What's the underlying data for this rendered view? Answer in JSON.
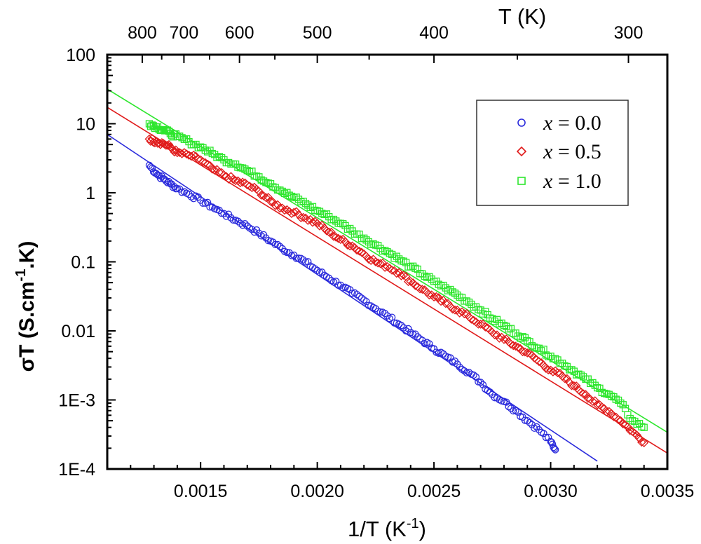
{
  "chart_data": {
    "type": "scatter",
    "title": "",
    "xlabel": "1/T (K",
    "xlabel_sup": "-1",
    "xlabel_close": ")",
    "ylabel": "σT (S.cm",
    "ylabel_sup": "-1",
    "ylabel_tail": ".K)",
    "top_axis_label": "T (K)",
    "xlim": [
      0.0011,
      0.0035
    ],
    "ylim": [
      0.0001,
      100
    ],
    "yscale": "log",
    "grid": false,
    "legend_position": "top-right",
    "x_ticks": [
      0.0015,
      0.002,
      0.0025,
      0.003,
      0.0035
    ],
    "x_tick_labels": [
      "0.0015",
      "0.0020",
      "0.0025",
      "0.0030",
      "0.0035"
    ],
    "y_ticks": [
      100,
      10,
      1,
      0.1,
      0.01,
      0.001,
      0.0001
    ],
    "y_tick_labels": [
      "100",
      "10",
      "1",
      "0.1",
      "0.01",
      "1E-3",
      "1E-4"
    ],
    "top_ticks": [
      800,
      700,
      600,
      500,
      400,
      300
    ],
    "top_tick_labels": [
      "800",
      "700",
      "600",
      "500",
      "400",
      "300"
    ],
    "top_minor_ticks": [
      750,
      650,
      550,
      450,
      350
    ],
    "series": [
      {
        "name": "x = 0.0",
        "legend_var": "x",
        "legend_eq": " = 0.0",
        "marker": "circle",
        "color": "#2b2bdc",
        "x": [
          0.00128,
          0.00131,
          0.00134,
          0.00137,
          0.0014,
          0.00145,
          0.0015,
          0.00155,
          0.0016,
          0.00165,
          0.0017,
          0.00175,
          0.0018,
          0.00185,
          0.0019,
          0.00195,
          0.002,
          0.00205,
          0.0021,
          0.00215,
          0.0022,
          0.00225,
          0.0023,
          0.00235,
          0.0024,
          0.00245,
          0.0025,
          0.00255,
          0.0026,
          0.00265,
          0.0027,
          0.00275,
          0.0028,
          0.00285,
          0.0029,
          0.00295,
          0.003,
          0.00302
        ],
        "y": [
          2.5,
          1.9,
          1.6,
          1.35,
          1.15,
          0.95,
          0.78,
          0.62,
          0.5,
          0.4,
          0.33,
          0.26,
          0.2,
          0.155,
          0.125,
          0.1,
          0.075,
          0.058,
          0.046,
          0.035,
          0.028,
          0.021,
          0.0165,
          0.0125,
          0.0095,
          0.0073,
          0.0055,
          0.0043,
          0.0033,
          0.0025,
          0.0018,
          0.0012,
          0.00095,
          0.0007,
          0.0005,
          0.00037,
          0.00025,
          0.00019
        ],
        "fit": {
          "x": [
            0.0011,
            0.0032
          ],
          "y": [
            7.0,
            0.00013
          ]
        }
      },
      {
        "name": "x = 0.5",
        "legend_var": "x",
        "legend_eq": " = 0.5",
        "marker": "diamond",
        "color": "#e01b1b",
        "x": [
          0.00128,
          0.00131,
          0.00134,
          0.00137,
          0.0014,
          0.00145,
          0.0015,
          0.00155,
          0.0016,
          0.00165,
          0.0017,
          0.00175,
          0.0018,
          0.00185,
          0.0019,
          0.00195,
          0.002,
          0.00205,
          0.0021,
          0.00215,
          0.0022,
          0.00225,
          0.0023,
          0.00235,
          0.0024,
          0.00245,
          0.0025,
          0.00255,
          0.0026,
          0.00265,
          0.0027,
          0.00275,
          0.0028,
          0.00285,
          0.0029,
          0.00295,
          0.003,
          0.00305,
          0.0031,
          0.00315,
          0.0032,
          0.00325,
          0.0033,
          0.00335,
          0.0034
        ],
        "y": [
          6.0,
          5.5,
          5.2,
          4.6,
          3.8,
          3.5,
          3.0,
          2.2,
          1.8,
          1.5,
          1.3,
          1.05,
          0.75,
          0.6,
          0.52,
          0.43,
          0.36,
          0.27,
          0.21,
          0.17,
          0.13,
          0.1,
          0.085,
          0.07,
          0.052,
          0.04,
          0.031,
          0.025,
          0.02,
          0.016,
          0.0125,
          0.0095,
          0.0075,
          0.006,
          0.0048,
          0.0036,
          0.0027,
          0.0022,
          0.0016,
          0.0012,
          0.00085,
          0.00068,
          0.0005,
          0.00035,
          0.00024
        ],
        "fit": {
          "x": [
            0.0011,
            0.0035
          ],
          "y": [
            17.3,
            0.00017
          ]
        }
      },
      {
        "name": "x = 1.0",
        "legend_var": "x",
        "legend_eq": " = 1.0",
        "marker": "square",
        "color": "#2ee62e",
        "x": [
          0.00128,
          0.00131,
          0.00134,
          0.00137,
          0.0014,
          0.00145,
          0.0015,
          0.00155,
          0.0016,
          0.00165,
          0.0017,
          0.00175,
          0.0018,
          0.00185,
          0.0019,
          0.00195,
          0.002,
          0.00205,
          0.0021,
          0.00215,
          0.0022,
          0.00225,
          0.0023,
          0.00235,
          0.0024,
          0.00245,
          0.0025,
          0.00255,
          0.0026,
          0.00265,
          0.0027,
          0.00275,
          0.0028,
          0.00285,
          0.0029,
          0.00295,
          0.003,
          0.00305,
          0.0031,
          0.00315,
          0.0032,
          0.00325,
          0.0033,
          0.00335,
          0.0034
        ],
        "y": [
          10.0,
          9.0,
          8.2,
          7.2,
          6.5,
          5.5,
          4.6,
          3.7,
          3.0,
          2.6,
          2.1,
          1.7,
          1.35,
          1.05,
          0.85,
          0.7,
          0.55,
          0.45,
          0.36,
          0.28,
          0.22,
          0.175,
          0.14,
          0.11,
          0.085,
          0.067,
          0.052,
          0.042,
          0.033,
          0.026,
          0.02,
          0.015,
          0.012,
          0.0093,
          0.0072,
          0.0056,
          0.0043,
          0.0034,
          0.0026,
          0.002,
          0.0015,
          0.0012,
          0.0009,
          0.0005,
          0.0004
        ],
        "fit": {
          "x": [
            0.0011,
            0.0035
          ],
          "y": [
            31.8,
            0.00034
          ]
        }
      }
    ]
  }
}
